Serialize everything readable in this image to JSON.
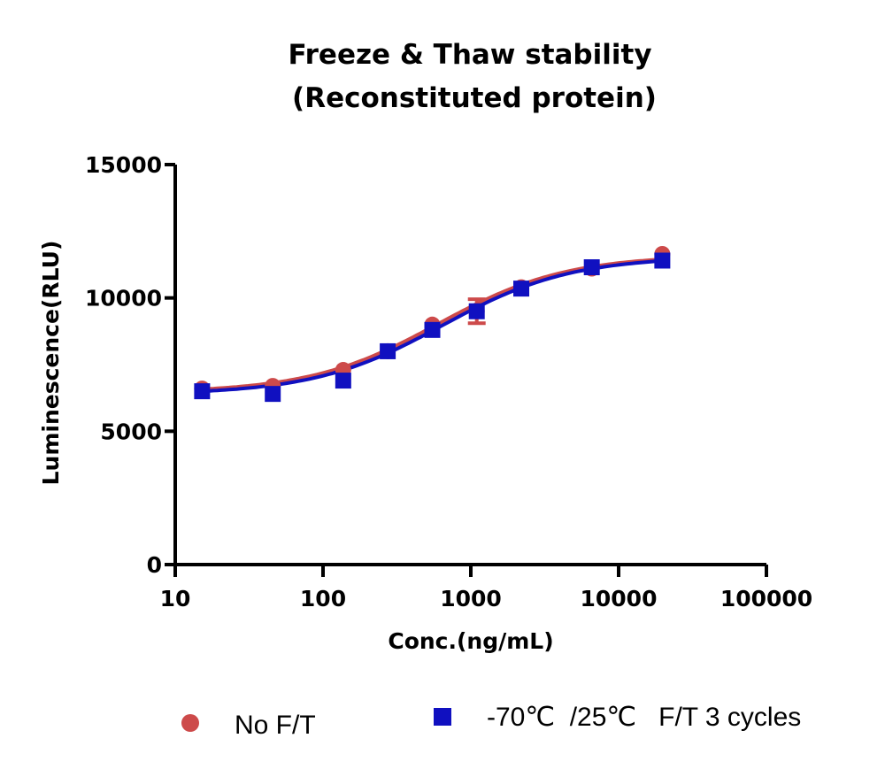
{
  "chart_data": {
    "type": "scatter",
    "title": [
      "Freeze & Thaw stability",
      "(Reconstituted protein)"
    ],
    "xlabel": "Conc.(ng/mL)",
    "ylabel": "Luminescence(RLU)",
    "xscale": "log",
    "xlim": [
      10,
      100000
    ],
    "ylim": [
      0,
      15000
    ],
    "xticks": [
      10,
      100,
      1000,
      10000,
      100000
    ],
    "yticks": [
      0,
      5000,
      10000,
      15000
    ],
    "xtick_labels": [
      "10",
      "100",
      "1000",
      "10000",
      "100000"
    ],
    "ytick_labels": [
      "0",
      "5000",
      "10000",
      "15000"
    ],
    "legend_position": "bottom",
    "series": [
      {
        "name": "No F/T",
        "marker": "circle",
        "color": "#cd4a4a",
        "x": [
          15.2,
          45.7,
          137,
          274,
          549,
          1097,
          2195,
          6584,
          19753
        ],
        "y": [
          6600,
          6700,
          7300,
          8000,
          9000,
          9500,
          10400,
          11100,
          11650
        ],
        "err": [
          0,
          0,
          0,
          0,
          0,
          450,
          0,
          0,
          0
        ],
        "fit": {
          "bottom": 6450,
          "top": 11600,
          "ec50": 600,
          "hill": 1.0
        }
      },
      {
        "name": "-70℃  /25℃   F/T 3 cycles",
        "marker": "square",
        "color": "#1010c0",
        "x": [
          15.2,
          45.7,
          137,
          274,
          549,
          1097,
          2195,
          6584,
          19753
        ],
        "y": [
          6500,
          6400,
          6900,
          8000,
          8800,
          9500,
          10350,
          11150,
          11400
        ],
        "err": [
          0,
          0,
          0,
          0,
          0,
          0,
          0,
          0,
          0
        ],
        "fit": {
          "bottom": 6380,
          "top": 11550,
          "ec50": 640,
          "hill": 1.0
        }
      }
    ]
  }
}
